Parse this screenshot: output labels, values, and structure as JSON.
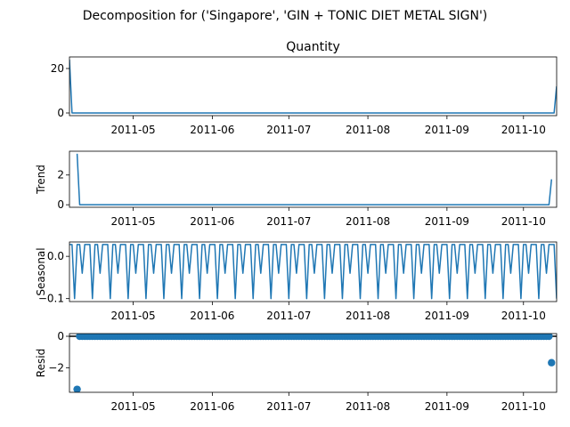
{
  "figure": {
    "suptitle": "Decomposition for ('Singapore', 'GIN + TONIC DIET METAL SIGN')"
  },
  "colors": {
    "series": "#1f77b4",
    "axis": "#000000",
    "background": "#ffffff"
  },
  "chart_data": [
    {
      "type": "line",
      "title": "Quantity",
      "ylabel": "",
      "xlim": [
        "2011-04-06",
        "2011-10-14"
      ],
      "ylim": [
        -1.2,
        25.2
      ],
      "yticks": [
        0,
        20
      ],
      "xticks": [
        "2011-05",
        "2011-06",
        "2011-07",
        "2011-08",
        "2011-09",
        "2011-10"
      ],
      "pattern": {
        "kind": "flat",
        "baseline": 0,
        "start": "2011-04-06",
        "end": "2011-10-14"
      },
      "x": [
        "2011-04-06",
        "2011-04-07",
        "2011-10-13",
        "2011-10-14"
      ],
      "values": [
        24,
        0,
        0,
        12
      ]
    },
    {
      "type": "line",
      "title": "",
      "ylabel": "Trend",
      "xlim": [
        "2011-04-06",
        "2011-10-14"
      ],
      "ylim": [
        -0.17,
        3.6
      ],
      "yticks": [
        0,
        2
      ],
      "xticks": [
        "2011-05",
        "2011-06",
        "2011-07",
        "2011-08",
        "2011-09",
        "2011-10"
      ],
      "pattern": {
        "kind": "flat",
        "baseline": 0,
        "start": "2011-04-09",
        "end": "2011-10-11"
      },
      "x": [
        "2011-04-09",
        "2011-04-10",
        "2011-10-11",
        "2011-10-12"
      ],
      "values": [
        3.43,
        0,
        0,
        1.71
      ]
    },
    {
      "type": "line",
      "title": "",
      "ylabel": "Seasonal",
      "xlim": [
        "2011-04-06",
        "2011-10-14"
      ],
      "ylim": [
        -0.107,
        0.034
      ],
      "yticks": [
        -0.1,
        0.0
      ],
      "ytick_labels": [
        "−0.1",
        "0.0"
      ],
      "xticks": [
        "2011-05",
        "2011-06",
        "2011-07",
        "2011-08",
        "2011-09",
        "2011-10"
      ],
      "pattern": {
        "kind": "periodic",
        "start": "2011-04-06",
        "end": "2011-10-14",
        "period_days": 7,
        "weekly_values": [
          0.028,
          0.028,
          -0.1,
          0.028,
          0.028,
          -0.04,
          0.028
        ]
      },
      "x": [],
      "values": []
    },
    {
      "type": "scatter",
      "title": "",
      "ylabel": "Resid",
      "xlim": [
        "2011-04-06",
        "2011-10-14"
      ],
      "ylim": [
        -3.56,
        0.17
      ],
      "yticks": [
        -2,
        0
      ],
      "ytick_labels": [
        "−2",
        "0"
      ],
      "xticks": [
        "2011-05",
        "2011-06",
        "2011-07",
        "2011-08",
        "2011-09",
        "2011-10"
      ],
      "reference_line": 0,
      "pattern": {
        "kind": "flat",
        "baseline": 0,
        "start": "2011-04-10",
        "end": "2011-10-11"
      },
      "x": [
        "2011-04-09",
        "2011-10-12"
      ],
      "values": [
        -3.37,
        -1.68
      ]
    }
  ]
}
